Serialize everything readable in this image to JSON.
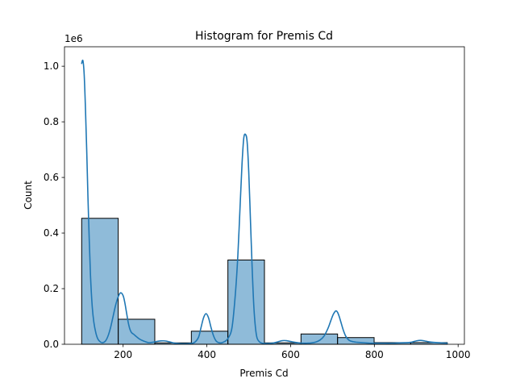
{
  "chart_data": {
    "type": "bar",
    "title": "Histogram for Premis Cd",
    "xlabel": "Premis Cd",
    "ylabel": "Count",
    "y_offset_label": "1e6",
    "xlim": [
      60,
      1015
    ],
    "ylim": [
      0,
      1070000
    ],
    "xticks": [
      200,
      400,
      600,
      800,
      1000
    ],
    "xtick_labels": [
      "200",
      "400",
      "600",
      "800",
      "1000"
    ],
    "yticks": [
      0,
      200000,
      400000,
      600000,
      800000,
      1000000
    ],
    "ytick_labels": [
      "0.0",
      "0.2",
      "0.4",
      "0.6",
      "0.8",
      "1.0"
    ],
    "grid": false,
    "bar_color": "#1f77b4",
    "bar_alpha": 0.5,
    "edge_color": "#000000",
    "kde_color": "#1f77b4",
    "bins": [
      {
        "x0": 101,
        "x1": 188.3,
        "count": 453000
      },
      {
        "x0": 188.3,
        "x1": 275.6,
        "count": 90000
      },
      {
        "x0": 275.6,
        "x1": 362.9,
        "count": 5000
      },
      {
        "x0": 362.9,
        "x1": 450.2,
        "count": 47000
      },
      {
        "x0": 450.2,
        "x1": 537.5,
        "count": 303000
      },
      {
        "x0": 537.5,
        "x1": 624.8,
        "count": 5000
      },
      {
        "x0": 624.8,
        "x1": 712.1,
        "count": 37000
      },
      {
        "x0": 712.1,
        "x1": 799.4,
        "count": 24000
      },
      {
        "x0": 799.4,
        "x1": 886.7,
        "count": 6000
      },
      {
        "x0": 886.7,
        "x1": 974,
        "count": 6000
      }
    ],
    "kde": {
      "x": [
        101,
        104,
        107,
        110,
        113,
        116,
        119,
        122,
        126,
        130,
        135,
        140,
        146,
        152,
        158,
        164,
        170,
        176,
        182,
        188,
        194,
        200,
        204,
        208,
        212,
        216,
        220,
        226,
        232,
        240,
        250,
        260,
        270,
        280,
        290,
        300,
        310,
        320,
        330,
        340,
        350,
        360,
        370,
        380,
        386,
        392,
        398,
        404,
        410,
        416,
        422,
        428,
        434,
        440,
        450,
        460,
        468,
        474,
        480,
        484,
        488,
        492,
        496,
        500,
        504,
        508,
        512,
        516,
        520,
        526,
        532,
        540,
        550,
        560,
        570,
        580,
        590,
        600,
        610,
        620,
        630,
        640,
        650,
        660,
        670,
        680,
        690,
        696,
        702,
        708,
        712,
        716,
        720,
        726,
        732,
        740,
        750,
        760,
        770,
        780,
        790,
        800,
        820,
        840,
        860,
        880,
        890,
        900,
        910,
        920,
        930,
        940,
        950,
        960,
        974
      ],
      "y": [
        1010000,
        1020000,
        970000,
        850000,
        700000,
        530000,
        380000,
        250000,
        140000,
        80000,
        40000,
        18000,
        8000,
        6000,
        12000,
        30000,
        60000,
        100000,
        140000,
        170000,
        185000,
        175000,
        150000,
        115000,
        80000,
        55000,
        42000,
        35000,
        27000,
        18000,
        11000,
        6000,
        7000,
        10000,
        12000,
        12000,
        9000,
        5000,
        3000,
        2000,
        2000,
        3000,
        6000,
        25000,
        60000,
        95000,
        110000,
        95000,
        60000,
        30000,
        12000,
        6000,
        5000,
        8000,
        20000,
        60000,
        180000,
        320000,
        520000,
        650000,
        740000,
        755000,
        730000,
        620000,
        450000,
        280000,
        140000,
        60000,
        22000,
        8000,
        4000,
        3000,
        3000,
        5000,
        9000,
        13000,
        13000,
        10000,
        7000,
        5000,
        4000,
        4000,
        5000,
        8000,
        15000,
        30000,
        60000,
        85000,
        108000,
        120000,
        115000,
        100000,
        80000,
        50000,
        28000,
        14000,
        9000,
        7000,
        6000,
        5000,
        4000,
        4000,
        4000,
        4000,
        5000,
        6000,
        8000,
        12000,
        14000,
        12000,
        9000,
        7000,
        6000,
        5000,
        4000
      ]
    }
  }
}
